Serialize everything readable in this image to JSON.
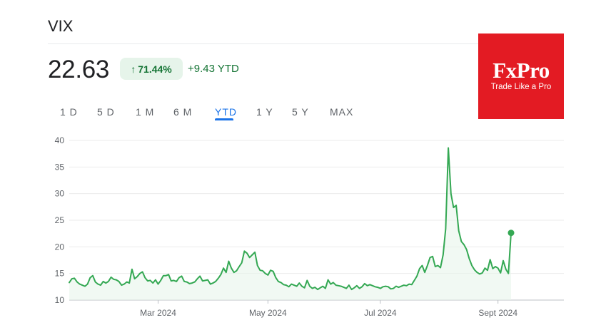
{
  "header": {
    "ticker": "VIX"
  },
  "quote": {
    "price": "22.63",
    "arrow": "↑",
    "change_percent": "71.44%",
    "change_ytd": "+9.43 YTD"
  },
  "tabs": [
    {
      "label": "1 D"
    },
    {
      "label": "5 D"
    },
    {
      "label": "1 M"
    },
    {
      "label": "6 M"
    },
    {
      "label": "YTD",
      "active": true
    },
    {
      "label": "1 Y"
    },
    {
      "label": "5 Y"
    },
    {
      "label": "MAX"
    }
  ],
  "logo": {
    "brand": "FxPro",
    "slogan": "Trade Like a Pro",
    "color": "#e31b23"
  },
  "colors": {
    "line": "#34a853",
    "fill": "#e6f4ea",
    "positive_text": "#137333",
    "accent": "#1a73e8"
  },
  "chart_data": {
    "type": "line",
    "title": "",
    "xlabel": "",
    "ylabel": "",
    "ylim": [
      10,
      40
    ],
    "yticks": [
      10,
      15,
      20,
      25,
      30,
      35,
      40
    ],
    "grid": true,
    "x_tick_labels": [
      {
        "label": "Mar 2024",
        "index": 34
      },
      {
        "label": "May 2024",
        "index": 76
      },
      {
        "label": "Jul 2024",
        "index": 119
      },
      {
        "label": "Sept 2024",
        "index": 164
      }
    ],
    "series": [
      {
        "values": [
          13.3,
          14.0,
          14.1,
          13.4,
          13.0,
          12.8,
          12.6,
          13.0,
          14.2,
          14.6,
          13.4,
          13.0,
          12.8,
          13.5,
          13.2,
          13.5,
          14.3,
          13.9,
          13.8,
          13.5,
          12.8,
          13.0,
          13.4,
          13.2,
          15.8,
          14.0,
          14.4,
          15.0,
          15.3,
          14.2,
          13.6,
          13.7,
          13.2,
          13.8,
          13.0,
          13.7,
          14.6,
          14.6,
          14.8,
          13.6,
          13.7,
          13.5,
          14.2,
          14.5,
          13.5,
          13.4,
          13.1,
          13.2,
          13.4,
          14.0,
          14.5,
          13.6,
          13.7,
          13.8,
          13.0,
          13.2,
          13.5,
          14.1,
          14.8,
          16.0,
          15.2,
          17.3,
          16.0,
          15.2,
          15.5,
          16.3,
          17.0,
          19.2,
          18.8,
          18.0,
          18.5,
          19.0,
          16.5,
          15.6,
          15.5,
          15.0,
          14.7,
          15.6,
          15.4,
          14.2,
          13.5,
          13.3,
          12.9,
          12.8,
          12.5,
          13.0,
          12.8,
          12.6,
          13.2,
          12.6,
          12.3,
          13.7,
          12.6,
          12.2,
          12.4,
          12.0,
          12.3,
          12.6,
          12.2,
          13.8,
          13.0,
          13.3,
          12.8,
          12.7,
          12.6,
          12.4,
          12.2,
          12.8,
          12.0,
          12.3,
          12.7,
          12.2,
          12.5,
          13.1,
          12.7,
          12.9,
          12.7,
          12.5,
          12.4,
          12.2,
          12.5,
          12.6,
          12.5,
          12.1,
          12.2,
          12.6,
          12.4,
          12.6,
          12.8,
          12.7,
          13.0,
          12.9,
          13.7,
          14.5,
          15.9,
          16.5,
          15.2,
          16.5,
          18.0,
          18.2,
          16.3,
          16.5,
          16.1,
          18.5,
          23.4,
          38.6,
          30.0,
          27.4,
          27.8,
          23.0,
          21.0,
          20.4,
          19.5,
          17.8,
          16.5,
          15.7,
          15.2,
          14.9,
          15.1,
          16.0,
          15.6,
          17.6,
          15.9,
          16.3,
          16.0,
          15.1,
          17.4,
          15.8,
          15.0,
          22.63
        ]
      }
    ],
    "last_point": {
      "value": 22.63
    }
  }
}
